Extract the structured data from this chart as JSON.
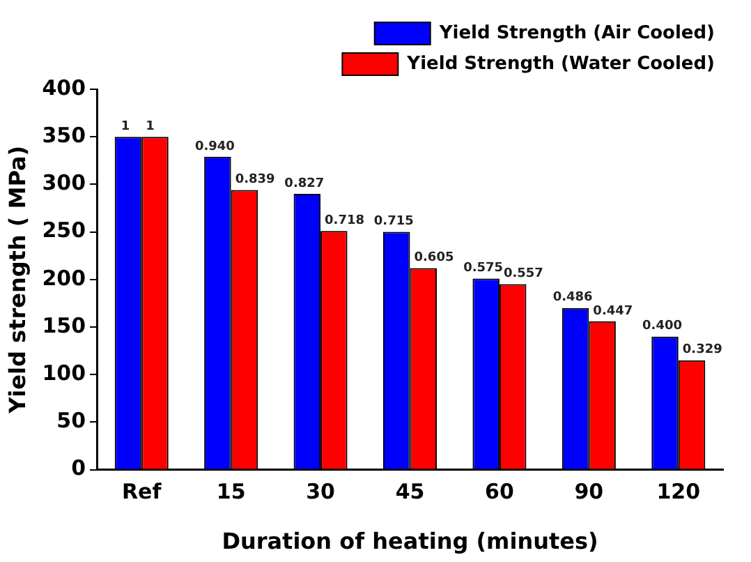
{
  "chart_data": {
    "type": "bar",
    "xlabel": "Duration of heating (minutes)",
    "ylabel": "Yield strength ( MPa)",
    "categories": [
      "Ref",
      "15",
      "30",
      "45",
      "60",
      "90",
      "120"
    ],
    "series": [
      {
        "name": "Yield Strength (Air Cooled)",
        "color": "#0000ff",
        "values": [
          350,
          329,
          290,
          250,
          201,
          170,
          140
        ]
      },
      {
        "name": "Yield Strength (Water Cooled)",
        "color": "#ff0000",
        "values": [
          350,
          294,
          251,
          212,
          195,
          156,
          115
        ]
      }
    ],
    "annotations": [
      {
        "text": "1",
        "x": "Ref",
        "y": 350
      },
      {
        "text": "0.940",
        "x": "15",
        "y": 329
      },
      {
        "text": "0.827",
        "x": "30",
        "y": 290
      },
      {
        "text": "0.715",
        "x": "45",
        "y": 250
      },
      {
        "text": "0.575",
        "x": "60",
        "y": 201
      },
      {
        "text": "0.486",
        "x": "90",
        "y": 170
      },
      {
        "text": "0.400",
        "x": "120",
        "y": 140
      },
      {
        "text": "1",
        "x": "Ref",
        "y": 350
      },
      {
        "text": "0.839",
        "x": "15",
        "y": 294
      },
      {
        "text": "0.718",
        "x": "30",
        "y": 251
      },
      {
        "text": "0.605",
        "x": "45",
        "y": 212
      },
      {
        "text": "0.557",
        "x": "60",
        "y": 195
      },
      {
        "text": "0.447",
        "x": "90",
        "y": 156
      },
      {
        "text": "0.329",
        "x": "120",
        "y": 115
      }
    ],
    "ylim": [
      0,
      400
    ],
    "yticks": [
      0,
      50,
      100,
      150,
      200,
      250,
      300,
      350,
      400
    ],
    "grid": false,
    "legend": "top right"
  }
}
